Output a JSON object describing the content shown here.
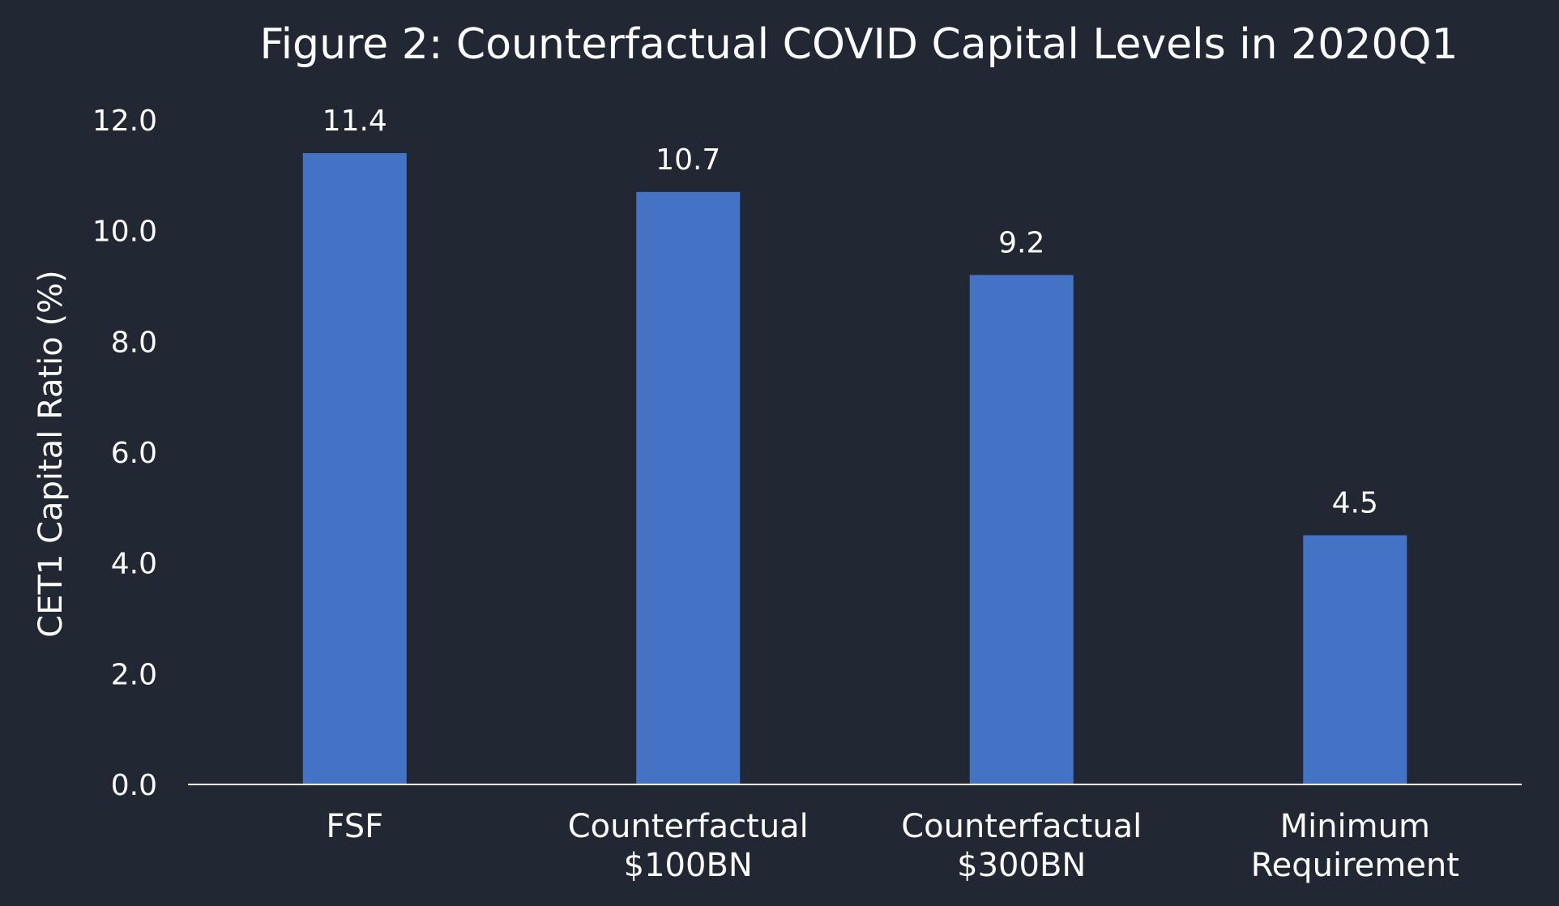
{
  "chart_data": {
    "type": "bar",
    "title": "Figure 2: Counterfactual COVID Capital Levels in 2020Q1",
    "xlabel": "",
    "ylabel": "CET1 Capital Ratio (%)",
    "categories": [
      [
        "FSF"
      ],
      [
        "Counterfactual",
        "$100BN"
      ],
      [
        "Counterfactual",
        "$300BN"
      ],
      [
        "Minimum",
        "Requirement"
      ]
    ],
    "values": [
      11.4,
      10.7,
      9.2,
      4.5
    ],
    "data_labels": [
      "11.4",
      "10.7",
      "9.2",
      "4.5"
    ],
    "ylim": [
      0,
      12
    ],
    "yticks": [
      "0.0",
      "2.0",
      "4.0",
      "6.0",
      "8.0",
      "10.0",
      "12.0"
    ],
    "grid": false,
    "legend": "none",
    "colors": {
      "background": "#222833",
      "bar": "#4472C4",
      "text": "#FFFFFF",
      "axis": "#FFFFFF"
    }
  }
}
